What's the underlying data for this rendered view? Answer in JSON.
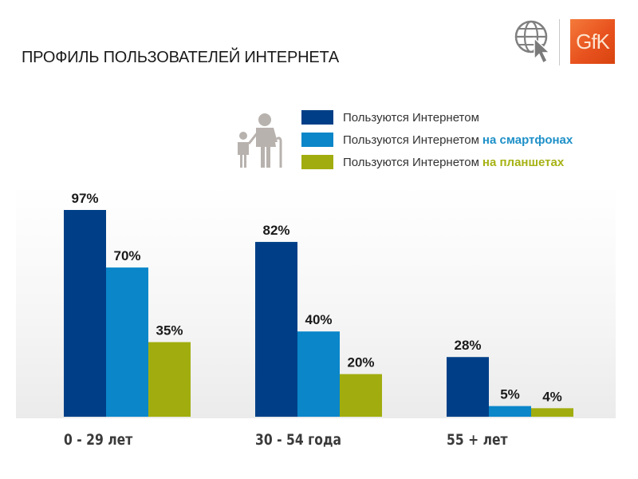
{
  "title": "ПРОФИЛЬ ПОЛЬЗОВАТЕЛЕЙ ИНТЕРНЕТА",
  "logo": {
    "brand": "GfK",
    "icon": "globe-cursor-icon"
  },
  "legend": [
    {
      "prefix": "Пользуются Интернетом",
      "highlight": "",
      "color": "#003f87",
      "highlight_color": ""
    },
    {
      "prefix": "Пользуются Интернетом",
      "highlight": "на смартфонах",
      "color": "#0a86c9",
      "highlight_color": "#1e90c8"
    },
    {
      "prefix": "Пользуются Интернетом",
      "highlight": "на планшетах",
      "color": "#a1ad0e",
      "highlight_color": "#a6b214"
    }
  ],
  "chart_data": {
    "type": "bar",
    "title": "ПРОФИЛЬ ПОЛЬЗОВАТЕЛЕЙ ИНТЕРНЕТА",
    "xlabel": "",
    "ylabel": "",
    "categories": [
      "0 - 29 лет",
      "30 - 54 года",
      "55 + лет"
    ],
    "series": [
      {
        "name": "Пользуются Интернетом",
        "values": [
          97,
          82,
          28
        ],
        "labels": [
          "97%",
          "82%",
          "28%"
        ],
        "color": "#003f87"
      },
      {
        "name": "Пользуются Интернетом на смартфонах",
        "values": [
          70,
          40,
          5
        ],
        "labels": [
          "70%",
          "40%",
          "5%"
        ],
        "color": "#0a86c9"
      },
      {
        "name": "Пользуются Интернетом на планшетах",
        "values": [
          35,
          20,
          4
        ],
        "labels": [
          "35%",
          "20%",
          "4%"
        ],
        "color": "#a1ad0e"
      }
    ],
    "ylim": [
      0,
      100
    ],
    "grid": false,
    "legend_position": "top-right"
  }
}
